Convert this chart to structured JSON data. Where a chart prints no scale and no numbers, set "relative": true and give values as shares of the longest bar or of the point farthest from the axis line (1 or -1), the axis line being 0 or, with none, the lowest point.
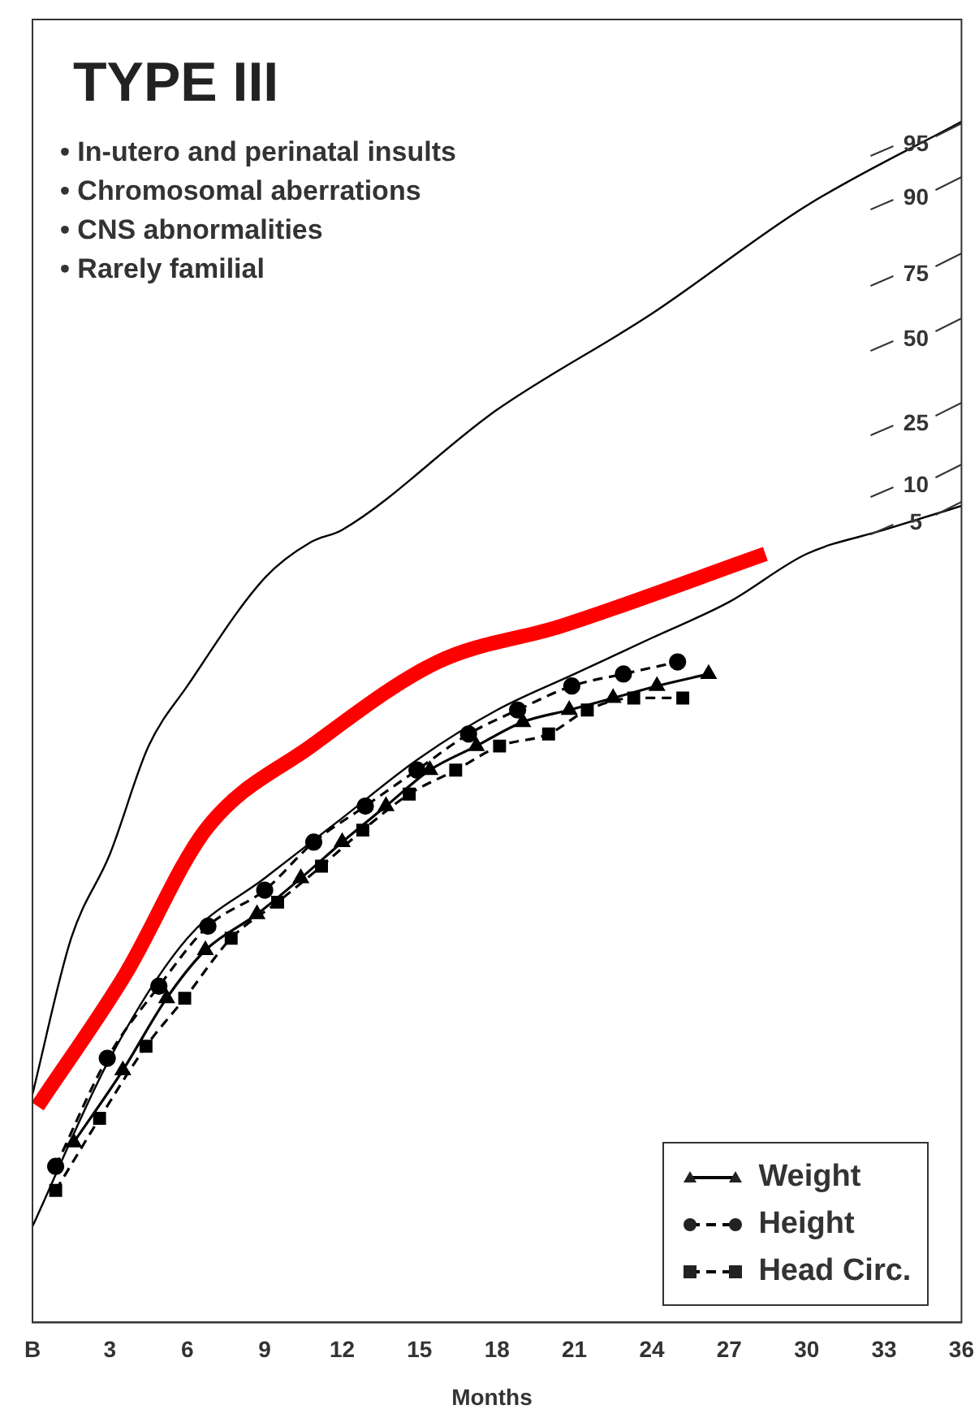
{
  "chart_data": {
    "type": "line",
    "title": "TYPE III",
    "xlabel": "Months",
    "relative": true,
    "grid": false,
    "legend": "bottom right",
    "xlim": [
      0,
      36
    ],
    "xticks": [
      {
        "value": 0,
        "label": "B"
      },
      3,
      6,
      9,
      12,
      15,
      18,
      21,
      24,
      27,
      30,
      33,
      36
    ],
    "annotations": [
      "• In-utero and perinatal insults",
      "• Chromosomal aberrations",
      "• CNS abnormalities",
      "• Rarely familial",
      "95",
      "90",
      "75",
      "50",
      "25",
      "10",
      "5"
    ],
    "series": [
      {
        "color": "#000000",
        "marker": "none",
        "x": [
          0,
          1.5,
          3,
          4.5,
          6,
          9,
          10.8,
          12,
          18,
          24,
          30,
          36
        ],
        "values": [
          0.19,
          0.32,
          0.39,
          0.48,
          0.53,
          0.62,
          0.65,
          0.66,
          0.76,
          0.84,
          0.93,
          1.0
        ]
      },
      {
        "color": "#000000",
        "marker": "none",
        "x": [
          0,
          3,
          6,
          9,
          12,
          15,
          18,
          21,
          24,
          27,
          30,
          33,
          36
        ],
        "values": [
          0.08,
          0.22,
          0.32,
          0.37,
          0.42,
          0.47,
          0.51,
          0.54,
          0.57,
          0.6,
          0.64,
          0.66,
          0.68
        ]
      },
      {
        "color": "#ff0000",
        "marker": "none",
        "x": [
          0.2,
          3.6,
          6.7,
          10.8,
          15.7,
          20.5,
          28.4
        ],
        "values": [
          0.18,
          0.29,
          0.41,
          0.48,
          0.55,
          0.58,
          0.64
        ]
      },
      {
        "name": "Weight",
        "color": "#000000",
        "marker": "triangle",
        "line_style": "solid",
        "x": [
          1.6,
          3.5,
          5.2,
          6.7,
          8.7,
          10.4,
          12.0,
          13.7,
          15.4,
          17.2,
          19.0,
          20.8,
          22.5,
          24.2,
          26.2
        ],
        "values": [
          0.15,
          0.21,
          0.27,
          0.31,
          0.34,
          0.37,
          0.4,
          0.43,
          0.46,
          0.48,
          0.5,
          0.51,
          0.52,
          0.53,
          0.54
        ]
      },
      {
        "name": "Height",
        "color": "#000000",
        "marker": "circle",
        "line_style": "dashed",
        "x": [
          0.9,
          2.9,
          4.9,
          6.8,
          9.0,
          10.9,
          12.9,
          14.9,
          16.9,
          18.8,
          20.9,
          22.9,
          25.0
        ],
        "values": [
          0.13,
          0.22,
          0.28,
          0.33,
          0.36,
          0.4,
          0.43,
          0.46,
          0.49,
          0.51,
          0.53,
          0.54,
          0.55
        ]
      },
      {
        "name": "Head Circ.",
        "color": "#000000",
        "marker": "square",
        "line_style": "dashed",
        "x": [
          0.9,
          2.6,
          4.4,
          5.9,
          7.7,
          9.5,
          11.2,
          12.8,
          14.6,
          16.4,
          18.1,
          20.0,
          21.5,
          23.3,
          25.2
        ],
        "values": [
          0.11,
          0.17,
          0.23,
          0.27,
          0.32,
          0.35,
          0.38,
          0.41,
          0.44,
          0.46,
          0.48,
          0.49,
          0.51,
          0.52,
          0.52
        ]
      }
    ]
  }
}
